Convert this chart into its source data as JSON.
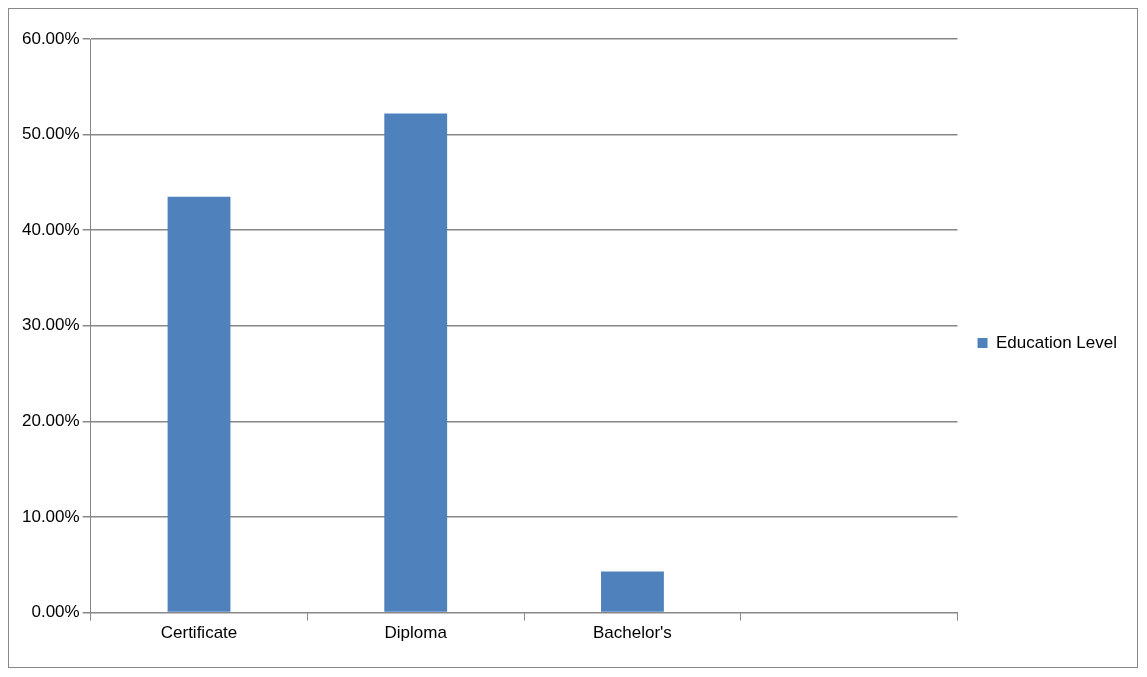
{
  "chart_data": {
    "type": "bar",
    "categories": [
      "Certificate",
      "Diploma",
      "Bachelor's",
      null
    ],
    "series": [
      {
        "name": "Education Level",
        "color": "#4f81bd",
        "values": [
          43.5,
          52.2,
          4.3,
          null
        ]
      }
    ],
    "ylim": [
      0,
      60
    ],
    "yticks": [
      {
        "value": 0,
        "label": "0.00%"
      },
      {
        "value": 10,
        "label": "10.00%"
      },
      {
        "value": 20,
        "label": "20.00%"
      },
      {
        "value": 30,
        "label": "30.00%"
      },
      {
        "value": 40,
        "label": "40.00%"
      },
      {
        "value": 50,
        "label": "50.00%"
      },
      {
        "value": 60,
        "label": "60.00%"
      }
    ],
    "grid": "y",
    "legend": "right"
  }
}
